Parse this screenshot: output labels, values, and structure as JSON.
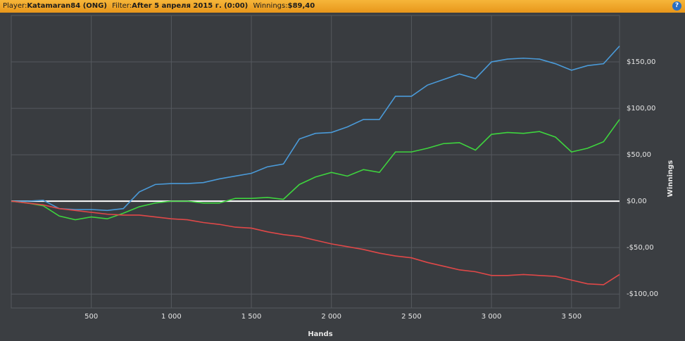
{
  "header": {
    "player_label": "Player:",
    "player": "Katamaran84 (ONG)",
    "filter_label": "Filter:",
    "filter": "After 5 апреля 2015 г. (0:00)",
    "winnings_label": "Winnings:",
    "winnings": "$89,40",
    "help": "?"
  },
  "chart_data": {
    "type": "line",
    "x_label": "Hands",
    "y_label": "Winnings",
    "x": [
      0,
      100,
      200,
      300,
      400,
      500,
      600,
      700,
      800,
      900,
      1000,
      1100,
      1200,
      1300,
      1400,
      1500,
      1600,
      1700,
      1800,
      1900,
      2000,
      2100,
      2200,
      2300,
      2400,
      2500,
      2600,
      2700,
      2800,
      2900,
      3000,
      3100,
      3200,
      3300,
      3400,
      3500,
      3600,
      3700,
      3800
    ],
    "series": [
      {
        "color": "#4a9ad8",
        "values": [
          0,
          0,
          1,
          -8,
          -9,
          -9,
          -10,
          -8,
          10,
          18,
          19,
          19,
          20,
          24,
          27,
          30,
          37,
          40,
          67,
          73,
          74,
          80,
          88,
          88,
          113,
          113,
          125,
          131,
          137,
          132,
          150,
          153,
          154,
          153,
          148,
          141,
          146,
          148,
          167
        ]
      },
      {
        "color": "#3ed43e",
        "values": [
          0,
          -2,
          -5,
          -16,
          -20,
          -17,
          -19,
          -13,
          -6,
          -2,
          0,
          0,
          -2,
          -2,
          3,
          3,
          4,
          2,
          18,
          26,
          31,
          27,
          34,
          31,
          53,
          53,
          57,
          62,
          63,
          55,
          72,
          74,
          73,
          75,
          69,
          53,
          57,
          64,
          88
        ]
      },
      {
        "color": "#e04848",
        "values": [
          0,
          -2,
          -4,
          -8,
          -10,
          -12,
          -14,
          -15,
          -15,
          -17,
          -19,
          -20,
          -23,
          -25,
          -28,
          -29,
          -33,
          -36,
          -38,
          -42,
          -46,
          -49,
          -52,
          -56,
          -59,
          -61,
          -66,
          -70,
          -74,
          -76,
          -80,
          -80,
          -79,
          -80,
          -81,
          -85,
          -89,
          -90,
          -79
        ]
      }
    ],
    "xlim": [
      0,
      3800
    ],
    "ylim": [
      -115,
      200
    ],
    "xticks": [
      500,
      {
        "value": 1000,
        "label": "1 000"
      },
      {
        "value": 1500,
        "label": "1 500"
      },
      {
        "value": 2000,
        "label": "2 000"
      },
      {
        "value": 2500,
        "label": "2 500"
      },
      {
        "value": 3000,
        "label": "3 000"
      },
      {
        "value": 3500,
        "label": "3 500"
      }
    ],
    "yticks": [
      {
        "value": -100,
        "label": "-$100,00"
      },
      {
        "value": -50,
        "label": "-$50,00"
      },
      {
        "value": 0,
        "label": "$0,00"
      },
      {
        "value": 50,
        "label": "$50,00"
      },
      {
        "value": 100,
        "label": "$100,00"
      },
      {
        "value": 150,
        "label": "$150,00"
      }
    ],
    "grid": true
  }
}
